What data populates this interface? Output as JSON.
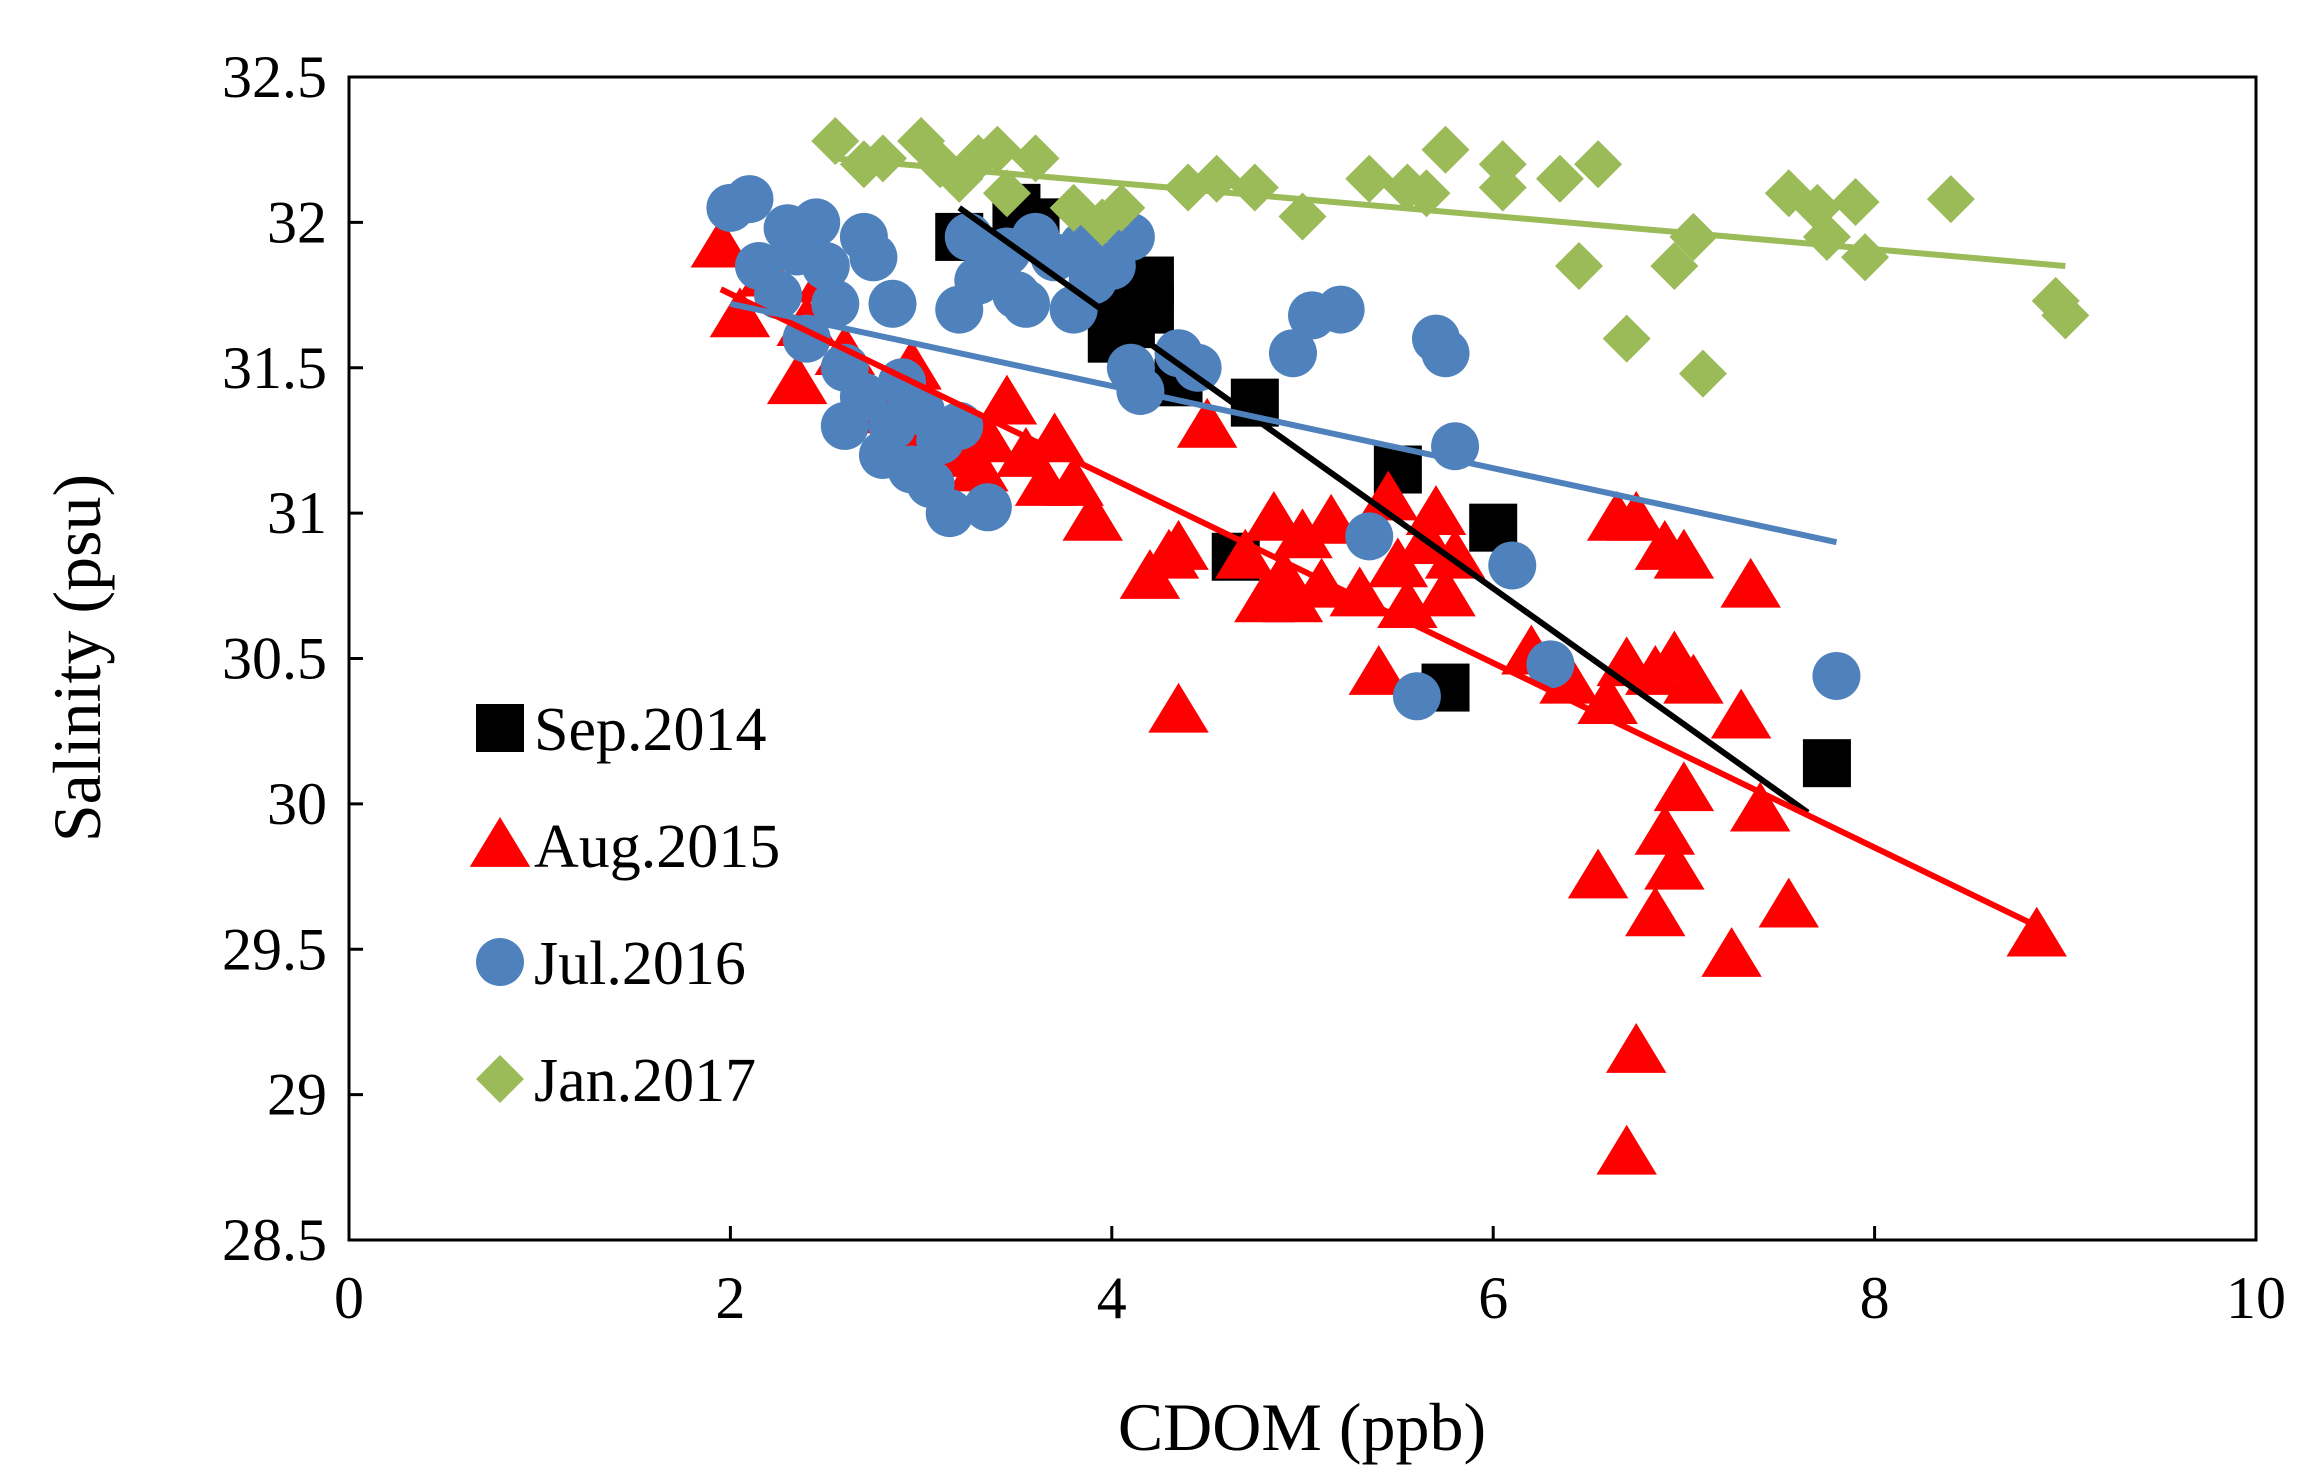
{
  "chart_data": {
    "type": "scatter",
    "title": "",
    "xlabel": "CDOM (ppb)",
    "ylabel": "Salinity (psu)",
    "xlim": [
      0,
      10
    ],
    "ylim": [
      28.5,
      32.5
    ],
    "x_ticks": [
      "0",
      "2",
      "4",
      "6",
      "8",
      "10"
    ],
    "y_ticks": [
      "28.5",
      "29",
      "29.5",
      "30",
      "30.5",
      "31",
      "31.5",
      "32",
      "32.5"
    ],
    "grid": false,
    "legend_position": "left-lower",
    "series": [
      {
        "name": "Sep.2014",
        "marker": "square",
        "color": "#000000",
        "points": [
          [
            3.2,
            31.95
          ],
          [
            3.5,
            32.05
          ],
          [
            3.6,
            32.0
          ],
          [
            4.0,
            31.6
          ],
          [
            4.0,
            31.72
          ],
          [
            4.1,
            31.65
          ],
          [
            4.1,
            31.78
          ],
          [
            4.2,
            31.8
          ],
          [
            4.2,
            31.7
          ],
          [
            4.35,
            31.45
          ],
          [
            4.75,
            31.38
          ],
          [
            4.65,
            30.85
          ],
          [
            5.5,
            31.15
          ],
          [
            5.75,
            30.4
          ],
          [
            6.0,
            30.95
          ],
          [
            7.75,
            30.14
          ]
        ],
        "trend": [
          [
            3.2,
            32.05
          ],
          [
            7.65,
            29.97
          ]
        ]
      },
      {
        "name": "Aug.2015",
        "marker": "triangle",
        "color": "#ff0000",
        "points": [
          [
            1.95,
            31.92
          ],
          [
            2.05,
            31.68
          ],
          [
            2.2,
            31.82
          ],
          [
            2.35,
            31.45
          ],
          [
            2.4,
            31.65
          ],
          [
            2.5,
            31.8
          ],
          [
            2.6,
            31.55
          ],
          [
            2.8,
            31.35
          ],
          [
            2.95,
            31.5
          ],
          [
            3.05,
            31.3
          ],
          [
            3.2,
            31.2
          ],
          [
            3.3,
            31.15
          ],
          [
            3.35,
            31.25
          ],
          [
            3.45,
            31.38
          ],
          [
            3.55,
            31.2
          ],
          [
            3.65,
            31.1
          ],
          [
            3.7,
            31.25
          ],
          [
            3.8,
            31.1
          ],
          [
            3.9,
            30.98
          ],
          [
            4.2,
            30.78
          ],
          [
            4.3,
            30.85
          ],
          [
            4.35,
            30.88
          ],
          [
            4.35,
            30.32
          ],
          [
            4.5,
            31.3
          ],
          [
            4.7,
            30.85
          ],
          [
            4.8,
            30.7
          ],
          [
            4.85,
            30.98
          ],
          [
            4.9,
            30.78
          ],
          [
            4.95,
            30.7
          ],
          [
            5.0,
            30.92
          ],
          [
            5.1,
            30.75
          ],
          [
            5.15,
            30.97
          ],
          [
            5.3,
            30.72
          ],
          [
            5.4,
            30.45
          ],
          [
            5.45,
            31.05
          ],
          [
            5.5,
            30.82
          ],
          [
            5.55,
            30.68
          ],
          [
            5.65,
            30.9
          ],
          [
            5.7,
            31.0
          ],
          [
            5.75,
            30.72
          ],
          [
            5.8,
            30.85
          ],
          [
            6.2,
            30.52
          ],
          [
            6.4,
            30.42
          ],
          [
            6.55,
            29.75
          ],
          [
            6.6,
            30.35
          ],
          [
            6.65,
            30.98
          ],
          [
            6.7,
            30.48
          ],
          [
            6.75,
            30.98
          ],
          [
            6.7,
            28.8
          ],
          [
            6.75,
            29.15
          ],
          [
            6.85,
            30.45
          ],
          [
            6.85,
            29.62
          ],
          [
            6.9,
            30.88
          ],
          [
            6.9,
            29.9
          ],
          [
            6.95,
            29.78
          ],
          [
            6.95,
            30.5
          ],
          [
            7.0,
            30.85
          ],
          [
            7.0,
            30.05
          ],
          [
            7.05,
            30.42
          ],
          [
            7.25,
            29.48
          ],
          [
            7.3,
            30.3
          ],
          [
            7.35,
            30.75
          ],
          [
            7.4,
            29.98
          ],
          [
            7.55,
            29.65
          ],
          [
            8.85,
            29.55
          ]
        ],
        "trend": [
          [
            1.95,
            31.77
          ],
          [
            8.85,
            29.58
          ]
        ]
      },
      {
        "name": "Jul.2016",
        "marker": "circle",
        "color": "#4f81bd",
        "points": [
          [
            2.0,
            32.05
          ],
          [
            2.1,
            32.08
          ],
          [
            2.15,
            31.85
          ],
          [
            2.25,
            31.75
          ],
          [
            2.3,
            31.98
          ],
          [
            2.35,
            31.9
          ],
          [
            2.4,
            31.6
          ],
          [
            2.45,
            32.0
          ],
          [
            2.5,
            31.85
          ],
          [
            2.55,
            31.72
          ],
          [
            2.6,
            31.5
          ],
          [
            2.6,
            31.3
          ],
          [
            2.7,
            31.95
          ],
          [
            2.75,
            31.88
          ],
          [
            2.7,
            31.4
          ],
          [
            2.8,
            31.2
          ],
          [
            2.85,
            31.3
          ],
          [
            2.85,
            31.72
          ],
          [
            2.9,
            31.45
          ],
          [
            2.95,
            31.15
          ],
          [
            3.0,
            31.35
          ],
          [
            3.05,
            31.1
          ],
          [
            3.1,
            31.25
          ],
          [
            3.15,
            31.0
          ],
          [
            3.2,
            31.7
          ],
          [
            3.2,
            31.3
          ],
          [
            3.25,
            31.95
          ],
          [
            3.3,
            31.8
          ],
          [
            3.35,
            31.02
          ],
          [
            3.4,
            31.85
          ],
          [
            3.45,
            31.9
          ],
          [
            3.5,
            31.75
          ],
          [
            3.55,
            31.72
          ],
          [
            3.6,
            31.95
          ],
          [
            3.7,
            31.88
          ],
          [
            3.8,
            31.7
          ],
          [
            3.85,
            31.92
          ],
          [
            3.9,
            31.8
          ],
          [
            4.0,
            31.85
          ],
          [
            4.1,
            31.95
          ],
          [
            4.1,
            31.5
          ],
          [
            4.15,
            31.42
          ],
          [
            4.35,
            31.55
          ],
          [
            4.45,
            31.5
          ],
          [
            4.95,
            31.55
          ],
          [
            5.05,
            31.68
          ],
          [
            5.2,
            31.7
          ],
          [
            5.35,
            30.92
          ],
          [
            5.6,
            30.37
          ],
          [
            5.7,
            31.6
          ],
          [
            5.75,
            31.55
          ],
          [
            5.8,
            31.23
          ],
          [
            6.1,
            30.82
          ],
          [
            6.3,
            30.48
          ],
          [
            7.8,
            30.44
          ]
        ],
        "trend": [
          [
            2.0,
            31.72
          ],
          [
            7.8,
            30.9
          ]
        ]
      },
      {
        "name": "Jan.2017",
        "marker": "diamond",
        "color": "#9bbb59",
        "points": [
          [
            2.55,
            32.28
          ],
          [
            2.7,
            32.2
          ],
          [
            2.8,
            32.22
          ],
          [
            3.0,
            32.28
          ],
          [
            3.1,
            32.2
          ],
          [
            3.2,
            32.15
          ],
          [
            3.3,
            32.22
          ],
          [
            3.4,
            32.25
          ],
          [
            3.45,
            32.1
          ],
          [
            3.6,
            32.22
          ],
          [
            3.8,
            32.05
          ],
          [
            3.95,
            32.0
          ],
          [
            4.05,
            32.05
          ],
          [
            4.4,
            32.12
          ],
          [
            4.55,
            32.15
          ],
          [
            4.75,
            32.12
          ],
          [
            5.0,
            32.02
          ],
          [
            5.35,
            32.15
          ],
          [
            5.55,
            32.12
          ],
          [
            5.65,
            32.1
          ],
          [
            5.75,
            32.25
          ],
          [
            6.05,
            32.2
          ],
          [
            6.05,
            32.12
          ],
          [
            6.35,
            32.15
          ],
          [
            6.45,
            31.85
          ],
          [
            6.55,
            32.2
          ],
          [
            6.7,
            31.6
          ],
          [
            6.95,
            31.85
          ],
          [
            7.05,
            31.95
          ],
          [
            7.1,
            31.48
          ],
          [
            7.55,
            32.1
          ],
          [
            7.7,
            32.05
          ],
          [
            7.75,
            31.95
          ],
          [
            7.9,
            32.07
          ],
          [
            7.95,
            31.88
          ],
          [
            8.4,
            32.08
          ],
          [
            8.95,
            31.73
          ],
          [
            9.0,
            31.68
          ]
        ],
        "trend": [
          [
            2.55,
            32.22
          ],
          [
            9.0,
            31.85
          ]
        ]
      }
    ]
  }
}
